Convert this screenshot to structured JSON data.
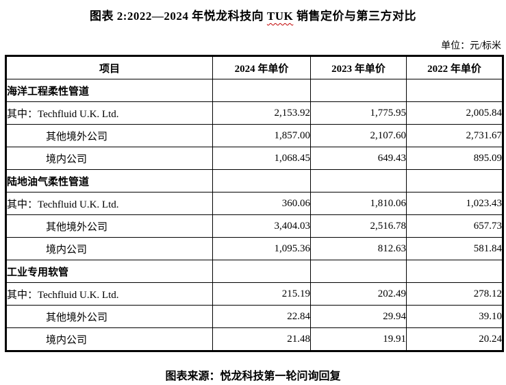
{
  "title": {
    "prefix": "图表 2:2022—2024 年悦龙科技向 ",
    "highlight": "TUK",
    "suffix": " 销售定价与第三方对比"
  },
  "unit_label": "单位：元/标米",
  "table": {
    "headers": [
      "项目",
      "2024 年单价",
      "2023 年单价",
      "2022 年单价"
    ],
    "rows": [
      {
        "type": "section",
        "label": "海洋工程柔性管道",
        "values": [
          "",
          "",
          ""
        ]
      },
      {
        "type": "data",
        "indent": false,
        "label": "其中：Techfluid U.K. Ltd.",
        "values": [
          "2,153.92",
          "1,775.95",
          "2,005.84"
        ]
      },
      {
        "type": "data",
        "indent": true,
        "label": "其他境外公司",
        "values": [
          "1,857.00",
          "2,107.60",
          "2,731.67"
        ]
      },
      {
        "type": "data",
        "indent": true,
        "label": "境内公司",
        "values": [
          "1,068.45",
          "649.43",
          "895.09"
        ]
      },
      {
        "type": "section",
        "label": "陆地油气柔性管道",
        "values": [
          "",
          "",
          ""
        ]
      },
      {
        "type": "data",
        "indent": false,
        "label": "其中：Techfluid U.K. Ltd.",
        "values": [
          "360.06",
          "1,810.06",
          "1,023.43"
        ]
      },
      {
        "type": "data",
        "indent": true,
        "label": "其他境外公司",
        "values": [
          "3,404.03",
          "2,516.78",
          "657.73"
        ]
      },
      {
        "type": "data",
        "indent": true,
        "label": "境内公司",
        "values": [
          "1,095.36",
          "812.63",
          "581.84"
        ]
      },
      {
        "type": "section",
        "label": "工业专用软管",
        "values": [
          "",
          "",
          ""
        ]
      },
      {
        "type": "data",
        "indent": false,
        "label": "其中：Techfluid U.K. Ltd.",
        "values": [
          "215.19",
          "202.49",
          "278.12"
        ]
      },
      {
        "type": "data",
        "indent": true,
        "label": "其他境外公司",
        "values": [
          "22.84",
          "29.94",
          "39.10"
        ]
      },
      {
        "type": "data",
        "indent": true,
        "label": "境内公司",
        "values": [
          "21.48",
          "19.91",
          "20.24"
        ]
      }
    ]
  },
  "footer": {
    "source_label": "图表来源：悦龙科技第一轮问询回复"
  },
  "colors": {
    "text": "#000000",
    "border": "#000000",
    "squiggle_underline": "#c00000",
    "background": "#ffffff"
  }
}
